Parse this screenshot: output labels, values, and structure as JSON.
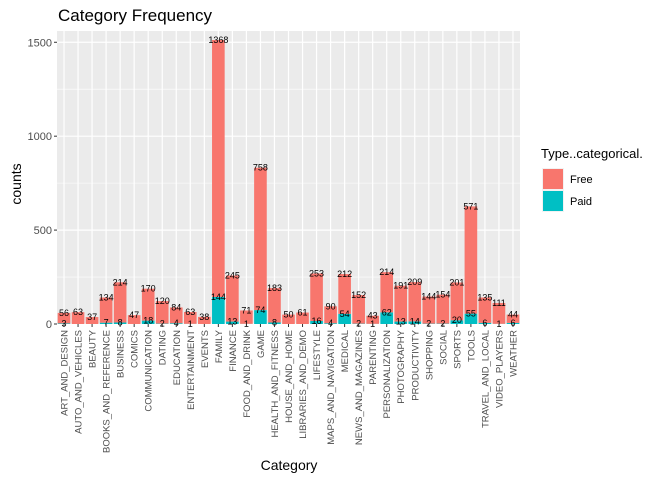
{
  "chart_data": {
    "type": "bar",
    "stacked": true,
    "title": "Category Frequency",
    "xlabel": "Category",
    "ylabel": "counts",
    "ylim": [
      0,
      1560
    ],
    "yticks": [
      0,
      500,
      1000,
      1500
    ],
    "grid": true,
    "legend": {
      "title": "Type..categorical.",
      "position": "right"
    },
    "categories": [
      "ART_AND_DESIGN",
      "AUTO_AND_VEHICLES",
      "BEAUTY",
      "BOOKS_AND_REFERENCE",
      "BUSINESS",
      "COMICS",
      "COMMUNICATION",
      "DATING",
      "EDUCATION",
      "ENTERTAINMENT",
      "EVENTS",
      "FAMILY",
      "FINANCE",
      "FOOD_AND_DRINK",
      "GAME",
      "HEALTH_AND_FITNESS",
      "HOUSE_AND_HOME",
      "LIBRARIES_AND_DEMO",
      "LIFESTYLE",
      "MAPS_AND_NAVIGATION",
      "MEDICAL",
      "NEWS_AND_MAGAZINES",
      "PARENTING",
      "PERSONALIZATION",
      "PHOTOGRAPHY",
      "PRODUCTIVITY",
      "SHOPPING",
      "SOCIAL",
      "SPORTS",
      "TOOLS",
      "TRAVEL_AND_LOCAL",
      "VIDEO_PLAYERS",
      "WEATHER"
    ],
    "series": [
      {
        "name": "Free",
        "color": "#F8766D",
        "values": [
          56,
          63,
          37,
          134,
          214,
          47,
          170,
          120,
          84,
          63,
          38,
          1368,
          245,
          71,
          758,
          183,
          50,
          61,
          253,
          90,
          212,
          152,
          43,
          214,
          191,
          209,
          144,
          154,
          201,
          571,
          135,
          111,
          44
        ],
        "labels": [
          "56",
          "63",
          "37",
          "134",
          "214",
          "47",
          "170",
          "120",
          "84",
          "63",
          "38",
          "1368",
          "245",
          "71",
          "758",
          "183",
          "50",
          "61",
          "253",
          "90",
          "212",
          "152",
          "43",
          "214",
          "191",
          "209",
          "144",
          "154",
          "201",
          "571",
          "135",
          "111",
          "44"
        ]
      },
      {
        "name": "Paid",
        "color": "#00BFC4",
        "values": [
          3,
          0,
          0,
          7,
          8,
          0,
          18,
          2,
          4,
          1,
          0,
          144,
          13,
          1,
          74,
          8,
          0,
          0,
          16,
          4,
          54,
          2,
          1,
          62,
          13,
          14,
          2,
          2,
          20,
          55,
          6,
          1,
          6
        ],
        "labels": [
          "3",
          "",
          "",
          "7",
          "8",
          "",
          "18",
          "2",
          "4",
          "1",
          "",
          "144",
          "13",
          "1",
          "74",
          "8",
          "",
          "",
          "16",
          "4",
          "54",
          "2",
          "1",
          "62",
          "13",
          "14",
          "2",
          "2",
          "20",
          "55",
          "6",
          "1",
          "6"
        ]
      }
    ]
  }
}
